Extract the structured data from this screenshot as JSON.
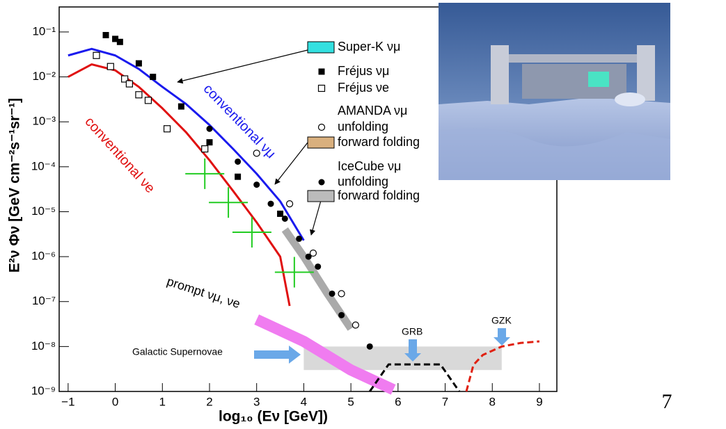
{
  "chart_data": {
    "type": "line",
    "x_label": "log₁₀ (Eν [GeV])",
    "y_label": "E²ν Φν [GeV cm⁻²s⁻¹sr⁻¹]",
    "xlim": [
      -1.19,
      9.37
    ],
    "ylim": [
      1e-09,
      0.36
    ],
    "log_y": true,
    "xticks": [
      {
        "value": -1,
        "label": "−1"
      },
      0,
      1,
      2,
      3,
      4,
      5,
      6,
      7,
      8,
      9
    ],
    "yticks": [
      {
        "value": 1e-09,
        "label": "10⁻⁹"
      },
      {
        "value": 1e-08,
        "label": "10⁻⁸"
      },
      {
        "value": 1e-07,
        "label": "10⁻⁷"
      },
      {
        "value": 1e-06,
        "label": "10⁻⁶"
      },
      {
        "value": 1e-05,
        "label": "10⁻⁵"
      },
      {
        "value": 0.0001,
        "label": "10⁻⁴"
      },
      {
        "value": 0.001,
        "label": "10⁻³"
      },
      {
        "value": 0.01,
        "label": "10⁻²"
      },
      {
        "value": 0.1,
        "label": "10⁻¹"
      }
    ],
    "series": [
      {
        "kind": "line",
        "color": "#1a1aee",
        "width": 3,
        "x": [
          -1,
          -0.5,
          0,
          0.5,
          1,
          1.5,
          2,
          2.5,
          3,
          3.5,
          4
        ],
        "values": [
          0.03,
          0.042,
          0.03,
          0.015,
          0.006,
          0.0025,
          0.00085,
          0.00025,
          7e-05,
          1.7e-05,
          2.3e-06
        ]
      },
      {
        "kind": "line",
        "color": "#e01010",
        "width": 3,
        "x": [
          -1,
          -0.5,
          0,
          0.5,
          1,
          1.5,
          2,
          2.5,
          3,
          3.5,
          3.7
        ],
        "values": [
          0.01,
          0.019,
          0.014,
          0.006,
          0.002,
          0.00059,
          0.00014,
          2.9e-05,
          5.8e-06,
          1e-06,
          8e-08
        ]
      },
      {
        "kind": "line",
        "color": "#f07cf0",
        "width": 16,
        "x": [
          3,
          4,
          5,
          5.9
        ],
        "values": [
          4e-08,
          1.3e-08,
          3e-09,
          1.1e-09
        ]
      },
      {
        "kind": "line",
        "color": "#aaaaaa",
        "width": 11,
        "x": [
          3.6,
          4,
          4.5,
          5
        ],
        "values": [
          4e-06,
          1e-06,
          1.5e-07,
          2.5e-08
        ]
      },
      {
        "kind": "dashed",
        "color": "#e02010",
        "width": 3,
        "x": [
          7.45,
          7.6,
          7.8,
          8.2,
          8.6,
          9
        ],
        "values": [
          1e-09,
          3.9e-09,
          6.5e-09,
          1e-08,
          1.2e-08,
          1.3e-08
        ]
      },
      {
        "kind": "dashed",
        "color": "#000000",
        "width": 3,
        "x": [
          5.4,
          5.8,
          6.9,
          7.3
        ],
        "values": [
          1e-09,
          4e-09,
          4e-09,
          1e-09
        ]
      },
      {
        "kind": "points",
        "marker": "square",
        "color": "#000000",
        "x": [
          -0.2,
          0,
          0.1,
          0.5,
          0.8,
          1.4,
          2.0,
          2.6,
          3.5
        ],
        "values": [
          0.085,
          0.07,
          0.06,
          0.02,
          0.01,
          0.0022,
          0.00035,
          6e-05,
          9e-06
        ]
      },
      {
        "kind": "points",
        "marker": "open-square",
        "color": "#000000",
        "x": [
          -0.4,
          -0.1,
          0.2,
          0.3,
          0.5,
          0.7,
          1.1,
          1.9
        ],
        "values": [
          0.03,
          0.017,
          0.009,
          0.007,
          0.004,
          0.003,
          0.0007,
          0.00025
        ]
      },
      {
        "kind": "points",
        "marker": "open-circle",
        "color": "#000000",
        "x": [
          3.0,
          3.7,
          4.2,
          4.8,
          5.1
        ],
        "values": [
          0.0002,
          1.5e-05,
          1.2e-06,
          1.5e-07,
          3e-08
        ]
      },
      {
        "kind": "points",
        "marker": "circle",
        "color": "#000000",
        "x": [
          2.0,
          2.6,
          3.0,
          3.3,
          3.6,
          3.9,
          4.1,
          4.3,
          4.6,
          4.8,
          5.4
        ],
        "values": [
          0.0007,
          0.00013,
          4e-05,
          1.5e-05,
          7e-06,
          2.5e-06,
          1e-06,
          6e-07,
          1.5e-07,
          5e-08,
          1e-08
        ]
      },
      {
        "kind": "points",
        "marker": "cross",
        "color": "#22cc22",
        "x": [
          1.9,
          2.4,
          2.9,
          3.8
        ],
        "values": [
          7e-05,
          1.6e-05,
          3.5e-06,
          4.5e-07
        ]
      }
    ],
    "bands": [
      {
        "color": "#cccccc",
        "x": [
          4,
          8.2
        ],
        "y": [
          3e-09,
          1e-08
        ]
      }
    ],
    "legend": [
      {
        "label": "Super-K νμ",
        "marker": "band",
        "color": "#33e0e0"
      },
      {
        "label": "Fréjus νμ",
        "marker": "square",
        "color": "#000000"
      },
      {
        "label": "Fréjus νe",
        "marker": "open-square",
        "color": "#000000"
      },
      {
        "label": "AMANDA νμ",
        "marker": "none",
        "color": "#000000"
      },
      {
        "label": "unfolding",
        "marker": "open-circle",
        "color": "#000000"
      },
      {
        "label": "forward folding",
        "marker": "band",
        "color": "#d9b07e"
      },
      {
        "label": "IceCube νμ",
        "marker": "none",
        "color": "#000000"
      },
      {
        "label": "unfolding",
        "marker": "circle",
        "color": "#000000"
      },
      {
        "label": "forward folding",
        "marker": "band",
        "color": "#bbbbbb"
      }
    ],
    "annotations": [
      {
        "text": "conventional νμ",
        "color": "#1a1aee"
      },
      {
        "text": "conventional νe",
        "color": "#e01010"
      },
      {
        "text": "prompt νμ, νe",
        "color": "#000000"
      },
      {
        "text": "Galactic Supernovae",
        "color": "#000000"
      },
      {
        "text": "GRB",
        "color": "#000000"
      },
      {
        "text": "GZK",
        "color": "#000000"
      }
    ]
  },
  "page_number": "7"
}
